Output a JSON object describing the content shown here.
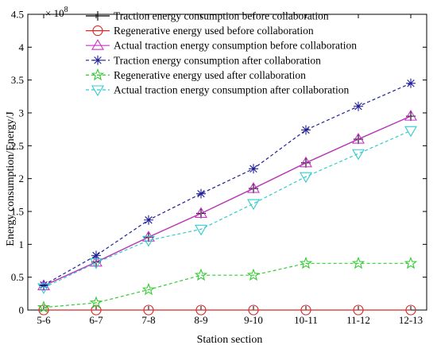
{
  "chart_data": {
    "type": "line",
    "xlabel": "Station section",
    "ylabel": "Energy consumption/Energy/J",
    "y_exponent_label": "× 10",
    "y_exponent_power": "8",
    "categories": [
      "5-6",
      "6-7",
      "7-8",
      "8-9",
      "9-10",
      "10-11",
      "11-12",
      "12-13"
    ],
    "ylim": [
      0,
      4.5
    ],
    "yticks": [
      "0",
      "0.5",
      "1",
      "1.5",
      "2",
      "2.5",
      "3",
      "3.5",
      "4",
      "4.5"
    ],
    "grid": false,
    "legend_position": "top",
    "series": [
      {
        "name": "Traction energy consumption before collaboration",
        "values": [
          0.37,
          0.73,
          1.11,
          1.47,
          1.85,
          2.24,
          2.6,
          2.95
        ],
        "color": "#000000",
        "marker": "plus",
        "dashed": false
      },
      {
        "name": "Regenerative energy used before collaboration",
        "values": [
          0,
          0,
          0,
          0,
          0,
          0,
          0,
          0
        ],
        "color": "#d62728",
        "marker": "circle",
        "dashed": false
      },
      {
        "name": "Actual traction energy consumption before collaboration",
        "values": [
          0.37,
          0.73,
          1.11,
          1.47,
          1.85,
          2.24,
          2.6,
          2.95
        ],
        "color": "#cc33cc",
        "marker": "triangle-up",
        "dashed": false
      },
      {
        "name": "Traction energy consumption after collaboration",
        "values": [
          0.38,
          0.83,
          1.37,
          1.77,
          2.15,
          2.74,
          3.1,
          3.45
        ],
        "color": "#1f1f99",
        "marker": "asterisk",
        "dashed": true
      },
      {
        "name": "Regenerative energy used after collaboration",
        "values": [
          0.04,
          0.11,
          0.31,
          0.53,
          0.53,
          0.71,
          0.71,
          0.71
        ],
        "color": "#33cc33",
        "marker": "star",
        "dashed": true
      },
      {
        "name": "Actual traction energy consumption after collaboration",
        "values": [
          0.34,
          0.72,
          1.06,
          1.23,
          1.62,
          2.03,
          2.38,
          2.73
        ],
        "color": "#33cccc",
        "marker": "triangle-down",
        "dashed": true
      }
    ]
  }
}
